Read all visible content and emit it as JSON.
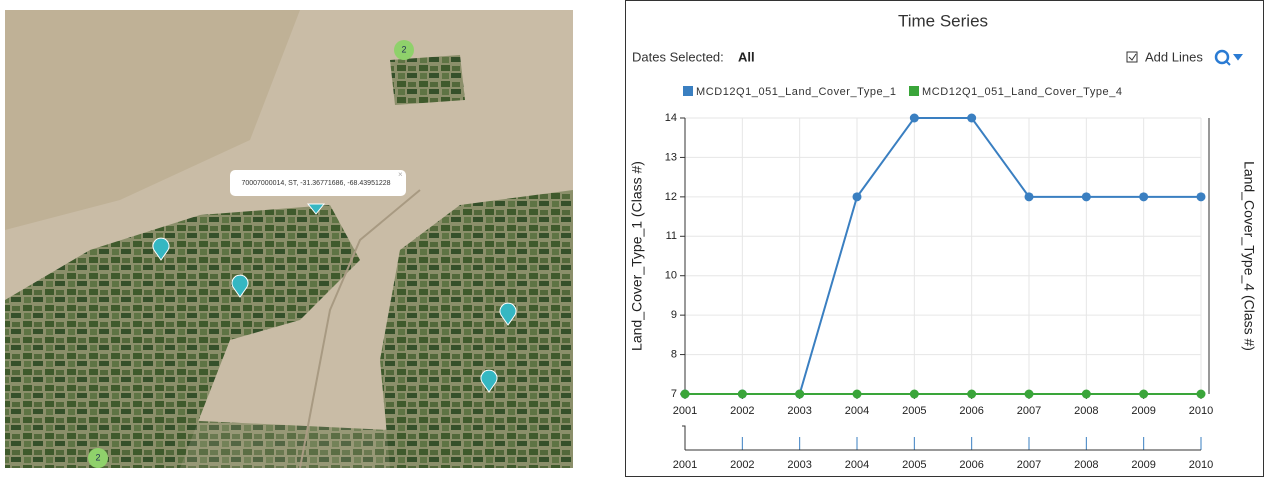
{
  "map": {
    "popup": "70007000014, ST, -31.36771686, -68.43951228",
    "clusters": [
      "2",
      "2"
    ]
  },
  "header": {
    "dates_label": "Dates Selected:",
    "dates_value": "All",
    "add_lines": "Add Lines"
  },
  "chart_data": {
    "type": "line",
    "title": "Time Series",
    "ylabel": "Land_Cover_Type_1 (Class #)",
    "y2label": "Land_Cover_Type_4 (Class #)",
    "x": [
      2001,
      2002,
      2003,
      2004,
      2005,
      2006,
      2007,
      2008,
      2009,
      2010
    ],
    "series": [
      {
        "name": "MCD12Q1_051_Land_Cover_Type_1",
        "color": "#3a7fc1",
        "values": [
          7,
          7,
          7,
          12,
          14,
          14,
          12,
          12,
          12,
          12
        ]
      },
      {
        "name": "MCD12Q1_051_Land_Cover_Type_4",
        "color": "#3aa53a",
        "values": [
          7,
          7,
          7,
          7,
          7,
          7,
          7,
          7,
          7,
          7
        ]
      }
    ],
    "xlim": [
      2001,
      2010
    ],
    "xticks": [
      2001,
      2002,
      2003,
      2004,
      2005,
      2006,
      2007,
      2008,
      2009,
      2010
    ],
    "ylim": [
      7,
      14
    ],
    "yticks": [
      7,
      8,
      9,
      10,
      11,
      12,
      13,
      14
    ],
    "grid": true
  }
}
